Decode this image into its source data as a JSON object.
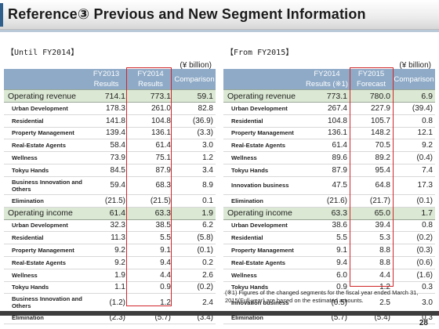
{
  "title": "Reference③  Previous and New Segment Information",
  "unit": "(¥ billion)",
  "left": {
    "label": "【Until FY2014】",
    "headers": [
      {
        "top": "",
        "bottom": ""
      },
      {
        "top": "FY2013",
        "bottom": "Results"
      },
      {
        "top": "FY2014",
        "bottom": "Results"
      },
      {
        "top": "Comparison",
        "bottom": ""
      }
    ],
    "rows": [
      {
        "type": "main",
        "label": "Operating revenue",
        "v1": "714.1",
        "v2": "773.1",
        "v3": "59.1"
      },
      {
        "type": "sub",
        "label": "Urban Development",
        "v1": "178.3",
        "v2": "261.0",
        "v3": "82.8"
      },
      {
        "type": "sub",
        "label": "Residential",
        "v1": "141.8",
        "v2": "104.8",
        "v3": "(36.9)"
      },
      {
        "type": "sub",
        "label": "Property Management",
        "v1": "139.4",
        "v2": "136.1",
        "v3": "(3.3)"
      },
      {
        "type": "sub",
        "label": "Real-Estate Agents",
        "v1": "58.4",
        "v2": "61.4",
        "v3": "3.0"
      },
      {
        "type": "sub",
        "label": "Wellness",
        "v1": "73.9",
        "v2": "75.1",
        "v3": "1.2"
      },
      {
        "type": "sub",
        "label": "Tokyu Hands",
        "v1": "84.5",
        "v2": "87.9",
        "v3": "3.4"
      },
      {
        "type": "sub tall",
        "label": "Business Innovation and Others",
        "v1": "59.4",
        "v2": "68.3",
        "v3": "8.9"
      },
      {
        "type": "sub",
        "label": "Elimination",
        "v1": "(21.5)",
        "v2": "(21.5)",
        "v3": "0.1"
      },
      {
        "type": "main",
        "label": "Operating income",
        "v1": "61.4",
        "v2": "63.3",
        "v3": "1.9"
      },
      {
        "type": "sub",
        "label": "Urban Development",
        "v1": "32.3",
        "v2": "38.5",
        "v3": "6.2"
      },
      {
        "type": "sub",
        "label": "Residential",
        "v1": "11.3",
        "v2": "5.5",
        "v3": "(5.8)"
      },
      {
        "type": "sub",
        "label": "Property Management",
        "v1": "9.2",
        "v2": "9.1",
        "v3": "(0.1)"
      },
      {
        "type": "sub",
        "label": "Real-Estate Agents",
        "v1": "9.2",
        "v2": "9.4",
        "v3": "0.2"
      },
      {
        "type": "sub",
        "label": "Wellness",
        "v1": "1.9",
        "v2": "4.4",
        "v3": "2.6"
      },
      {
        "type": "sub",
        "label": "Tokyu Hands",
        "v1": "1.1",
        "v2": "0.9",
        "v3": "(0.2)"
      },
      {
        "type": "sub tall",
        "label": "Business Innovation and Others",
        "v1": "(1.2)",
        "v2": "1.2",
        "v3": "2.4"
      },
      {
        "type": "sub",
        "label": "Elimination",
        "v1": "(2.3)",
        "v2": "(5.7)",
        "v3": "(3.4)"
      }
    ]
  },
  "right": {
    "label": "【From FY2015】",
    "headers": [
      {
        "top": "",
        "bottom": ""
      },
      {
        "top": "FY2014",
        "bottom": "Results (※1)"
      },
      {
        "top": "FY2015",
        "bottom": "Forecast"
      },
      {
        "top": "Comparison",
        "bottom": ""
      }
    ],
    "rows": [
      {
        "type": "main",
        "label": "Operating revenue",
        "v1": "773.1",
        "v2": "780.0",
        "v3": "6.9"
      },
      {
        "type": "sub",
        "label": "Urban Development",
        "v1": "267.4",
        "v2": "227.9",
        "v3": "(39.4)"
      },
      {
        "type": "sub",
        "label": "Residential",
        "v1": "104.8",
        "v2": "105.7",
        "v3": "0.8"
      },
      {
        "type": "sub",
        "label": "Property Management",
        "v1": "136.1",
        "v2": "148.2",
        "v3": "12.1"
      },
      {
        "type": "sub",
        "label": "Real-Estate Agents",
        "v1": "61.4",
        "v2": "70.5",
        "v3": "9.2"
      },
      {
        "type": "sub",
        "label": "Wellness",
        "v1": "89.6",
        "v2": "89.2",
        "v3": "(0.4)"
      },
      {
        "type": "sub",
        "label": "Tokyu Hands",
        "v1": "87.9",
        "v2": "95.4",
        "v3": "7.4"
      },
      {
        "type": "sub tall",
        "label": "Innovation business",
        "v1": "47.5",
        "v2": "64.8",
        "v3": "17.3"
      },
      {
        "type": "sub",
        "label": "Elimination",
        "v1": "(21.6)",
        "v2": "(21.7)",
        "v3": "(0.1)"
      },
      {
        "type": "main",
        "label": "Operating income",
        "v1": "63.3",
        "v2": "65.0",
        "v3": "1.7"
      },
      {
        "type": "sub",
        "label": "Urban Development",
        "v1": "38.6",
        "v2": "39.4",
        "v3": "0.8"
      },
      {
        "type": "sub",
        "label": "Residential",
        "v1": "5.5",
        "v2": "5.3",
        "v3": "(0.2)"
      },
      {
        "type": "sub",
        "label": "Property Management",
        "v1": "9.1",
        "v2": "8.8",
        "v3": "(0.3)"
      },
      {
        "type": "sub",
        "label": "Real-Estate Agents",
        "v1": "9.4",
        "v2": "8.8",
        "v3": "(0.6)"
      },
      {
        "type": "sub",
        "label": "Wellness",
        "v1": "6.0",
        "v2": "4.4",
        "v3": "(1.6)"
      },
      {
        "type": "sub",
        "label": "Tokyu Hands",
        "v1": "0.9",
        "v2": "1.2",
        "v3": "0.3"
      },
      {
        "type": "sub tall",
        "label": "Innovation business",
        "v1": "(0.5)",
        "v2": "2.5",
        "v3": "3.0"
      },
      {
        "type": "sub",
        "label": "Elimination",
        "v1": "(5.7)",
        "v2": "(5.4)",
        "v3": "0.3"
      }
    ]
  },
  "footnote": "(※1) Figures of the changed segments for the fiscal year ended March 31, 2015(Full-year) are based on the estimated amounts.",
  "page_number": "28"
}
